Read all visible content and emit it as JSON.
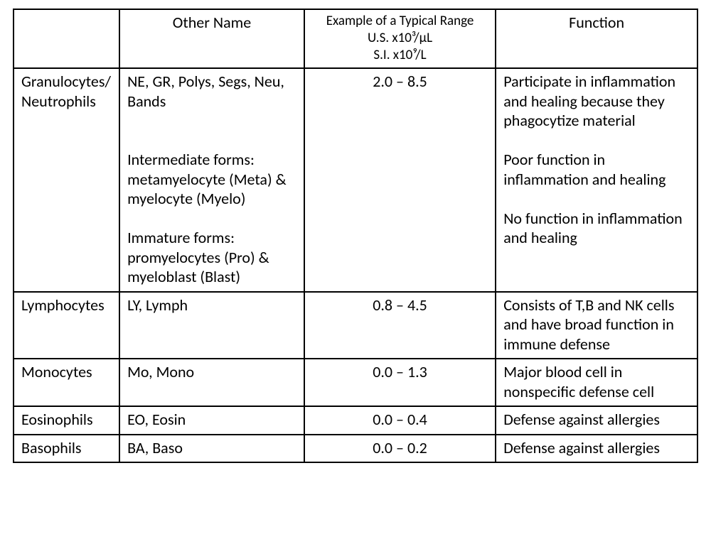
{
  "table": {
    "type": "table",
    "border_color": "#000000",
    "background_color": "#ffffff",
    "text_color": "#000000",
    "base_fontsize_pt": 16,
    "header_range_fontsize_pt": 14,
    "columns": {
      "name": {
        "header": "",
        "width_pct": 15.5,
        "align": "left"
      },
      "other": {
        "header": "Other Name",
        "width_pct": 27.0,
        "align": "left"
      },
      "range": {
        "header_line1": "Example of a Typical Range",
        "header_line2": "U.S. x10³/μL",
        "header_line3": "S.I. x10⁹/L",
        "width_pct": 28.0,
        "align": "center"
      },
      "function": {
        "header": "Function",
        "width_pct": 29.5,
        "align": "left"
      }
    },
    "rows": [
      {
        "name": "Granulocytes/ Neutrophils",
        "other_p1": "NE, GR, Polys, Segs, Neu, Bands",
        "other_p2": "Intermediate forms: metamyelocyte (Meta) & myelocyte (Myelo)",
        "other_p3": "Immature forms: promyelocytes (Pro) & myeloblast (Blast)",
        "range": "2.0 – 8.5",
        "func_p1": "Participate in inflammation and healing because they phagocytize material",
        "func_p2": "Poor function in inflammation and healing",
        "func_p3": "No function in inflammation and healing"
      },
      {
        "name": "Lymphocytes",
        "other_p1": "LY, Lymph",
        "range": "0.8 – 4.5",
        "func_p1": "Consists of T,B and NK cells  and have broad function in immune defense"
      },
      {
        "name": "Monocytes",
        "other_p1": "Mo, Mono",
        "range": "0.0 – 1.3",
        "func_p1": "Major blood cell in nonspecific defense cell"
      },
      {
        "name": "Eosinophils",
        "other_p1": "EO, Eosin",
        "range": "0.0 – 0.4",
        "func_p1": "Defense against allergies"
      },
      {
        "name": "Basophils",
        "other_p1": "BA, Baso",
        "range": "0.0 – 0.2",
        "func_p1": "Defense against allergies"
      }
    ]
  }
}
